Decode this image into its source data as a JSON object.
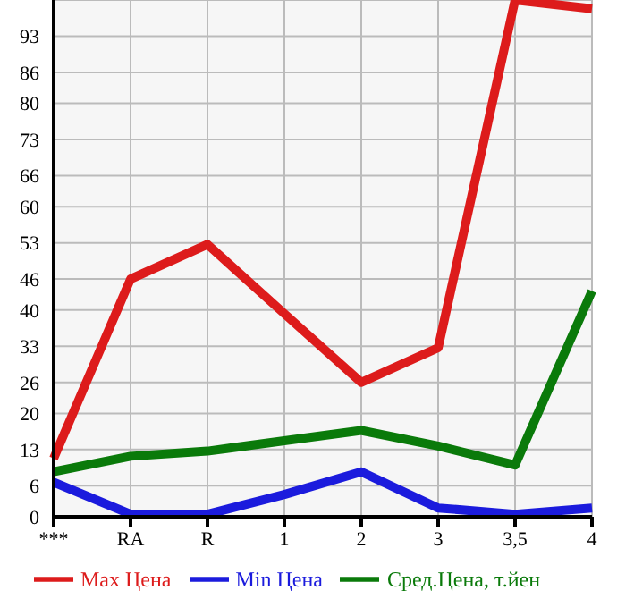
{
  "chart_data": {
    "type": "line",
    "categories": [
      "***",
      "RA",
      "R",
      "1",
      "2",
      "3",
      "3,5",
      "4"
    ],
    "series": [
      {
        "name": "Max Цена",
        "color": "#dd1b1b",
        "values": [
          11.3,
          46,
          52.7,
          39.3,
          26,
          32.7,
          100,
          98.3
        ]
      },
      {
        "name": "Min Цена",
        "color": "#1b1bdd",
        "values": [
          6.7,
          0.5,
          0.5,
          4.3,
          8.7,
          1.7,
          0.5,
          1.7
        ]
      },
      {
        "name": "Сред.Цена, т.йен",
        "color": "#0a7a0a",
        "values": [
          8.7,
          11.7,
          12.7,
          14.7,
          16.7,
          13.7,
          10,
          43.7
        ]
      }
    ],
    "ylim": [
      0,
      100
    ],
    "yticks": [
      0,
      6,
      13,
      20,
      26,
      33,
      40,
      46,
      53,
      60,
      66,
      73,
      80,
      86,
      93
    ],
    "grid": true,
    "legend": "bottom",
    "marker": "none",
    "line_style": "solid"
  }
}
